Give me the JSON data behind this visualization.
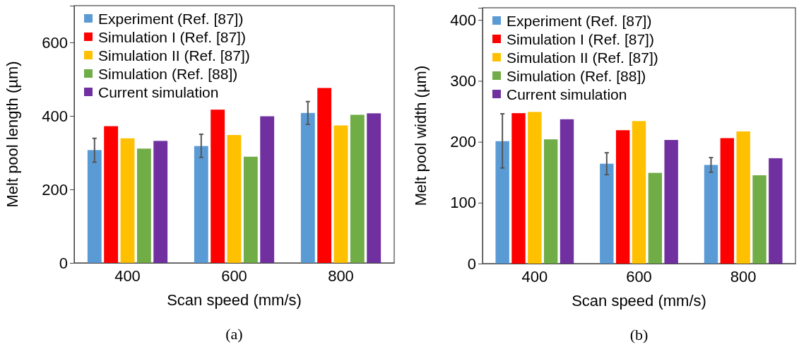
{
  "chart_data": [
    {
      "type": "bar",
      "xlabel": "Scan speed (mm/s)",
      "ylabel": "Melt pool length (µm)",
      "categories": [
        "400",
        "600",
        "800"
      ],
      "ylim": [
        0,
        700
      ],
      "yticks": [
        0,
        200,
        400,
        600
      ],
      "legend": "top left",
      "annotations": [
        "(a)"
      ],
      "series": [
        {
          "name": "Experiment (Ref. [87])",
          "color": "#5b9bd5",
          "values": [
            307,
            318,
            408
          ],
          "errors": [
            [
              274,
              339
            ],
            [
              287,
              350
            ],
            [
              377,
              439
            ]
          ]
        },
        {
          "name": "Simulation I (Ref. [87])",
          "color": "#ff0000",
          "values": [
            372,
            417,
            476
          ]
        },
        {
          "name": "Simulation II (Ref. [87])",
          "color": "#ffc000",
          "values": [
            339,
            348,
            374
          ]
        },
        {
          "name": "Simulation (Ref. [88])",
          "color": "#70ad47",
          "values": [
            311,
            289,
            403
          ]
        },
        {
          "name": "Current simulation",
          "color": "#7030a0",
          "values": [
            332,
            399,
            407
          ]
        }
      ]
    },
    {
      "type": "bar",
      "xlabel": "Scan speed (mm/s)",
      "ylabel": "Melt pool width (µm)",
      "categories": [
        "400",
        "600",
        "800"
      ],
      "ylim": [
        0,
        420
      ],
      "yticks": [
        0,
        100,
        200,
        300,
        400
      ],
      "legend": "top left",
      "annotations": [
        "(b)"
      ],
      "series": [
        {
          "name": "Experiment (Ref. [87])",
          "color": "#5b9bd5",
          "values": [
            201,
            164,
            162
          ],
          "errors": [
            [
              157,
              246
            ],
            [
              146,
              182
            ],
            [
              150,
              174
            ]
          ]
        },
        {
          "name": "Simulation I (Ref. [87])",
          "color": "#ff0000",
          "values": [
            247,
            219,
            206
          ]
        },
        {
          "name": "Simulation II (Ref. [87])",
          "color": "#ffc000",
          "values": [
            249,
            234,
            217
          ]
        },
        {
          "name": "Simulation (Ref. [88])",
          "color": "#70ad47",
          "values": [
            204,
            149,
            145
          ]
        },
        {
          "name": "Current simulation",
          "color": "#7030a0",
          "values": [
            237,
            203,
            173
          ]
        }
      ]
    }
  ]
}
